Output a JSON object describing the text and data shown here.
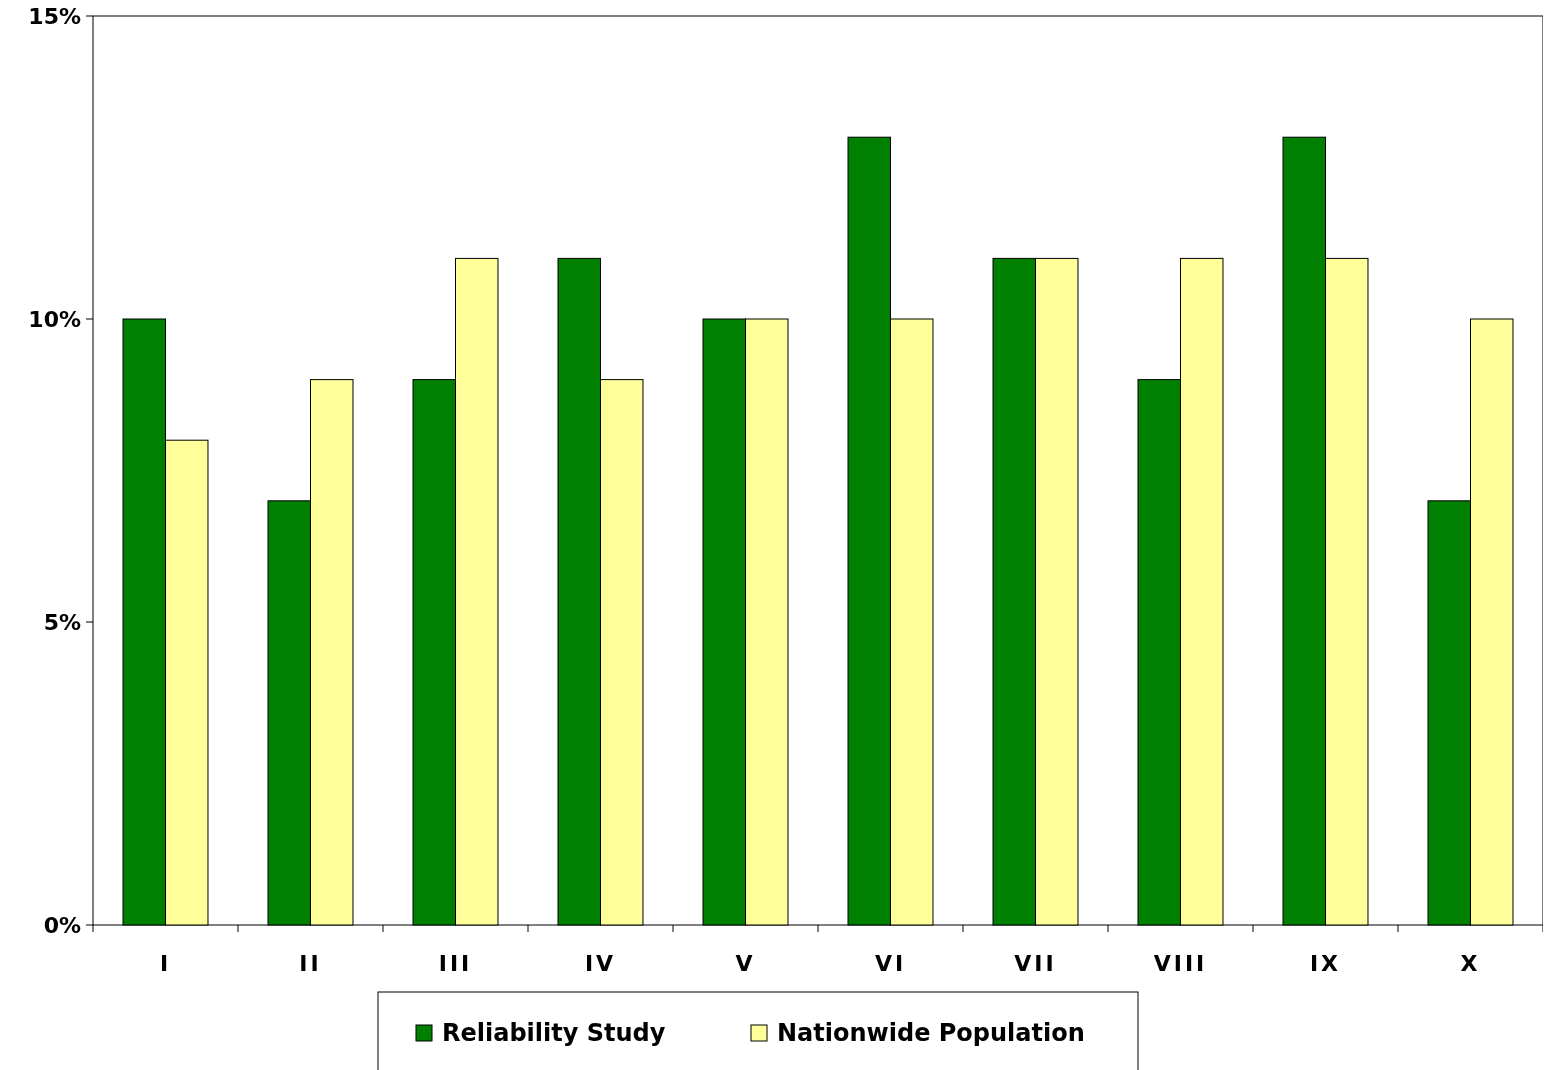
{
  "chart_data": {
    "type": "bar",
    "categories": [
      "I",
      "II",
      "III",
      "IV",
      "V",
      "VI",
      "VII",
      "VIII",
      "IX",
      "X"
    ],
    "series": [
      {
        "name": "Reliability Study",
        "color": "#008000",
        "values": [
          10,
          7,
          9,
          11,
          10,
          13,
          11,
          9,
          13,
          7
        ]
      },
      {
        "name": "Nationwide Population",
        "color": "#ffff99",
        "values": [
          8,
          9,
          11,
          9,
          10,
          10,
          11,
          11,
          11,
          10
        ]
      }
    ],
    "ylim": [
      0,
      15
    ],
    "yticks": [
      {
        "value": 0,
        "label": "0%"
      },
      {
        "value": 5,
        "label": "5%"
      },
      {
        "value": 10,
        "label": "10%"
      },
      {
        "value": 15,
        "label": "15%"
      }
    ],
    "grid": false,
    "legend": "bottom"
  }
}
